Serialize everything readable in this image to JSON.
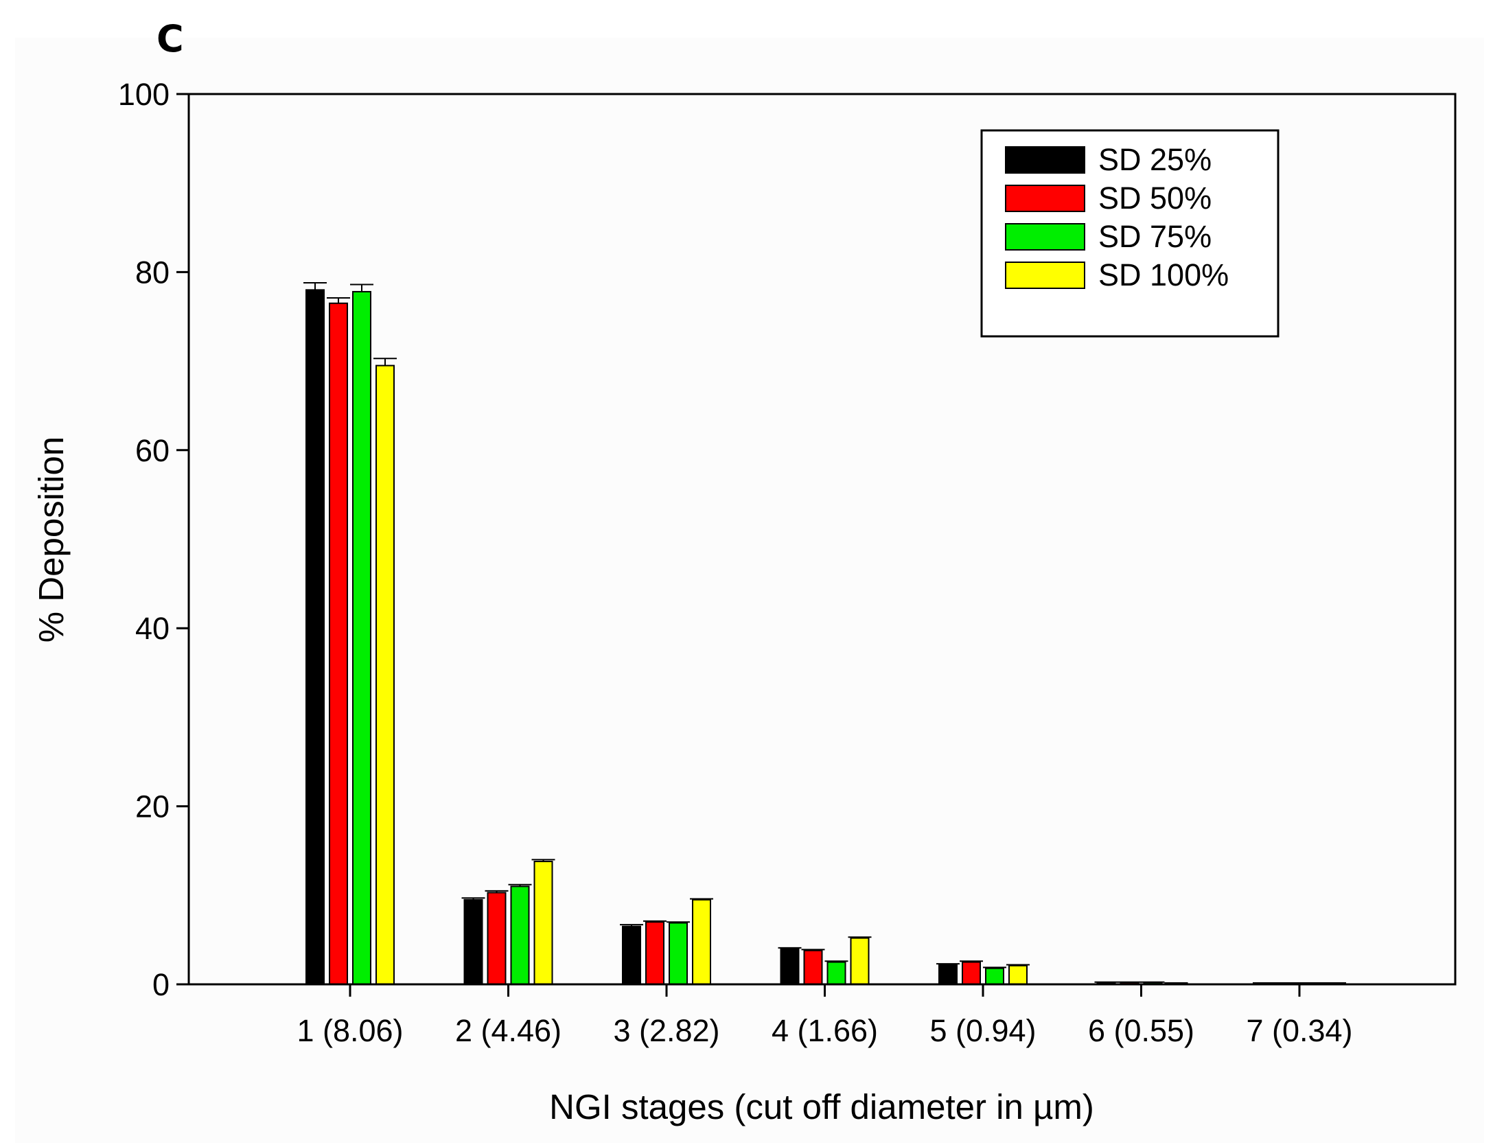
{
  "panel_label": "C",
  "chart_data": {
    "type": "bar",
    "title": "",
    "xlabel": "NGI stages (cut off diameter in µm)",
    "ylabel": "% Deposition",
    "ylim": [
      0,
      100
    ],
    "yticks": [
      "0",
      "20",
      "40",
      "60",
      "80",
      "100"
    ],
    "categories": [
      "1 (8.06)",
      "2 (4.46)",
      "3 (2.82)",
      "4 (1.66)",
      "5 (0.94)",
      "6 (0.55)",
      "7 (0.34)"
    ],
    "series": [
      {
        "name": "SD 25%",
        "color": "#000000",
        "values": [
          78.0,
          9.5,
          6.5,
          4.0,
          2.2,
          0.2,
          0.1
        ],
        "errors": [
          0.8,
          0.2,
          0.2,
          0.1,
          0.1,
          0.05,
          0.05
        ]
      },
      {
        "name": "SD 50%",
        "color": "#ff0000",
        "values": [
          76.5,
          10.3,
          7.0,
          3.8,
          2.5,
          0.2,
          0.1
        ],
        "errors": [
          0.6,
          0.2,
          0.1,
          0.1,
          0.1,
          0.05,
          0.05
        ]
      },
      {
        "name": "SD 75%",
        "color": "#00ee00",
        "values": [
          77.8,
          11.0,
          6.9,
          2.5,
          1.8,
          0.2,
          0.1
        ],
        "errors": [
          0.8,
          0.2,
          0.1,
          0.1,
          0.1,
          0.05,
          0.05
        ]
      },
      {
        "name": "SD 100%",
        "color": "#ffff00",
        "values": [
          69.5,
          13.8,
          9.5,
          5.2,
          2.1,
          0.1,
          0.1
        ],
        "errors": [
          0.8,
          0.2,
          0.1,
          0.1,
          0.1,
          0.05,
          0.05
        ]
      }
    ],
    "legend_position": "top-right",
    "grid": false
  }
}
